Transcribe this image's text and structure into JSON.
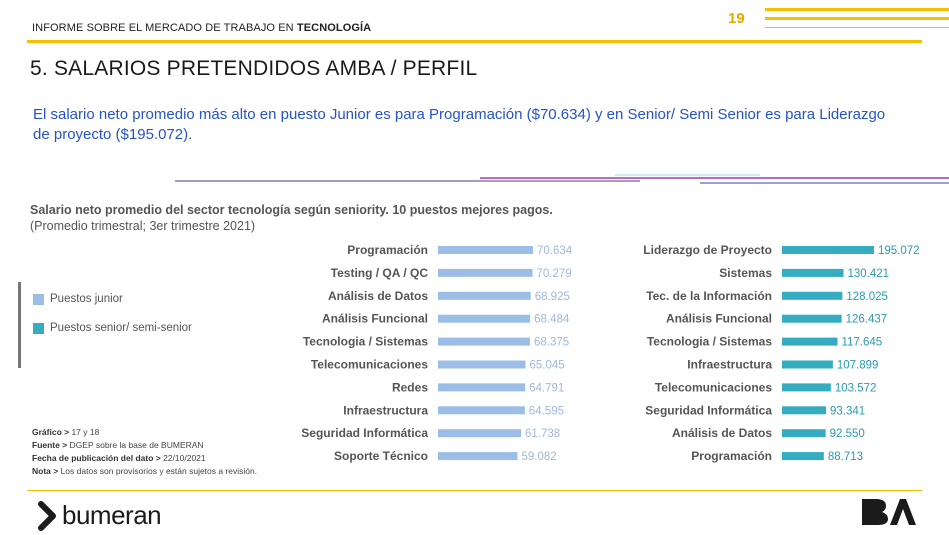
{
  "header": {
    "title_prefix": "INFORME SOBRE EL MERCADO DE TRABAJO EN ",
    "title_bold": "TECNOLOGÍA",
    "page_number": "19"
  },
  "section": {
    "title": "5. SALARIOS PRETENDIDOS AMBA / PERFIL",
    "intro": "El salario neto promedio más alto en puesto Junior es para Programación ($70.634) y en Senior/ Semi Senior es para Liderazgo de proyecto ($195.072)."
  },
  "legend": {
    "junior": "Puestos junior",
    "senior": "Puestos senior/ semi-senior"
  },
  "notes": {
    "grafico_label": "Gráfico >",
    "grafico_value": " 17 y 18",
    "fuente_label": "Fuente >",
    "fuente_value": " DGEP sobre la base de BUMERAN",
    "fecha_label": "Fecha de publicación del dato >",
    "fecha_value": " 22/10/2021",
    "nota_label": "Nota >",
    "nota_value": " Los datos son provisorios y están sujetos a revisión."
  },
  "footer": {
    "brand": "bumeran"
  },
  "colors": {
    "junior": "#9bbde6",
    "senior": "#36acc1",
    "accent": "#f5c000",
    "intro_text": "#2653c9"
  },
  "chart_data": [
    {
      "type": "bar",
      "orientation": "horizontal",
      "title": "Salario neto promedio del sector tecnología según seniority. 10 puestos  mejores pagos.",
      "subtitle": "(Promedio trimestral; 3er trimestre 2021)",
      "series_name": "Puestos junior",
      "categories": [
        "Programación",
        "Testing / QA / QC",
        "Análisis de Datos",
        "Análisis Funcional",
        "Tecnologia / Sistemas",
        "Telecomunicaciones",
        "Redes",
        "Infraestructura",
        "Seguridad Informática",
        "Soporte Técnico"
      ],
      "values": [
        70634,
        70279,
        68925,
        68484,
        68375,
        65045,
        64791,
        64595,
        61738,
        59082
      ],
      "labels": [
        "70.634",
        "70.279",
        "68.925",
        "68.484",
        "68.375",
        "65.045",
        "64.791",
        "64.595",
        "61.738",
        "59.082"
      ],
      "grid": false
    },
    {
      "type": "bar",
      "orientation": "horizontal",
      "series_name": "Puestos senior/ semi-senior",
      "categories": [
        "Liderazgo de Proyecto",
        "Sistemas",
        "Tec. de la Información",
        "Análisis Funcional",
        "Tecnologia / Sistemas",
        "Infraestructura",
        "Telecomunicaciones",
        "Seguridad Informática",
        "Análisis de Datos",
        "Programación"
      ],
      "values": [
        195072,
        130421,
        128025,
        126437,
        117645,
        107899,
        103572,
        93341,
        92550,
        88713
      ],
      "labels": [
        "195.072",
        "130.421",
        "128.025",
        "126.437",
        "117.645",
        "107.899",
        "103.572",
        "93.341",
        "92.550",
        "88.713"
      ],
      "grid": false
    }
  ]
}
